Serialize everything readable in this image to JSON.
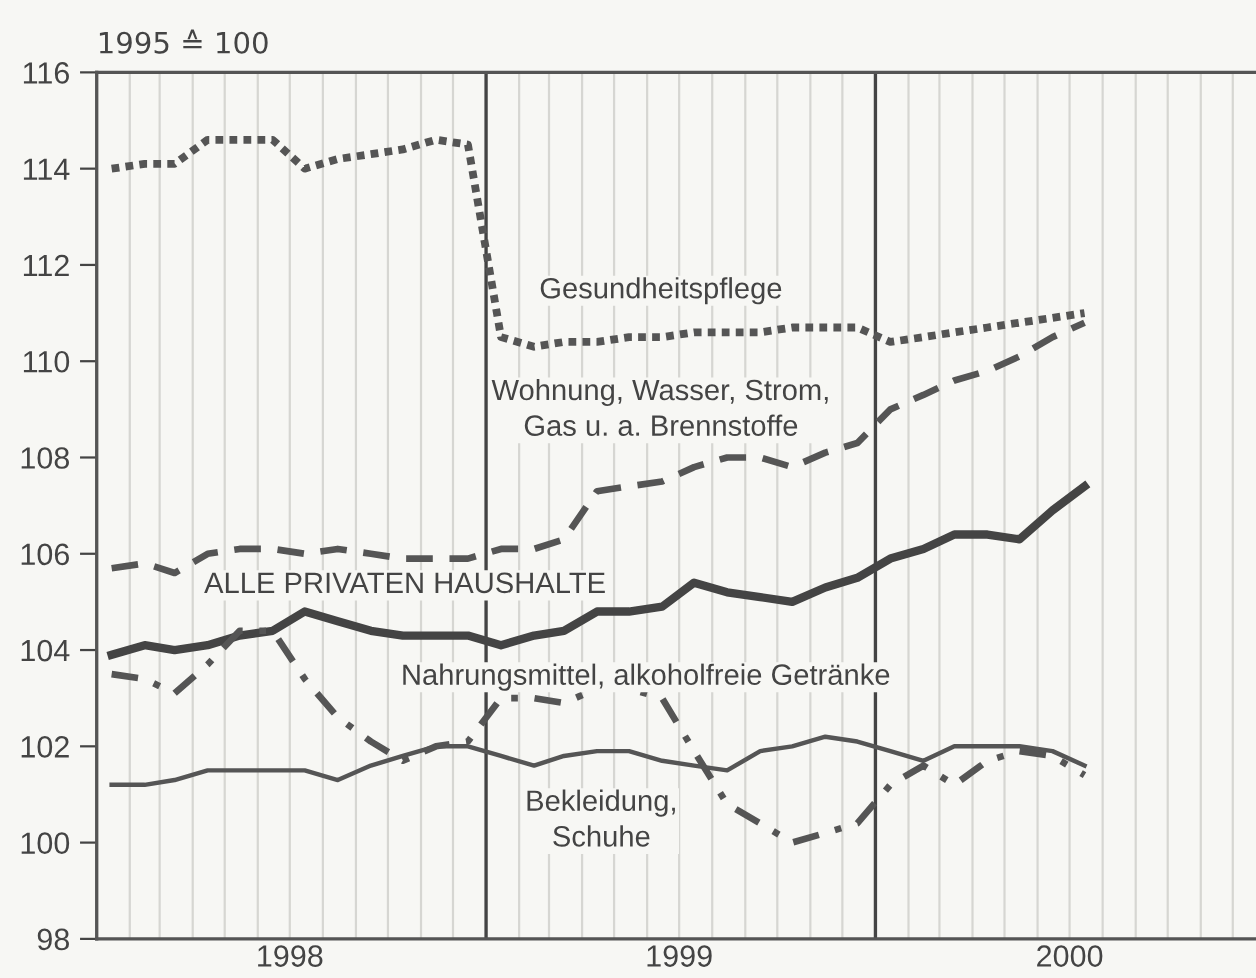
{
  "chart_data": {
    "type": "line",
    "ylabel": "1995 ≙ 100",
    "x": [
      "1998-01-15",
      "1998-02-15",
      "1998-03-15",
      "1998-04-15",
      "1998-05-15",
      "1998-06-15",
      "1998-07-15",
      "1998-08-15",
      "1998-09-15",
      "1998-10-15",
      "1998-11-15",
      "1998-12-15",
      "1999-01-15",
      "1999-02-15",
      "1999-03-15",
      "1999-04-15",
      "1999-05-15",
      "1999-06-15",
      "1999-07-15",
      "1999-08-15",
      "1999-09-15",
      "1999-10-15",
      "1999-11-15",
      "1999-12-15",
      "2000-01-15",
      "2000-02-15",
      "2000-03-15",
      "2000-04-15",
      "2000-05-15",
      "2000-06-15",
      "2000-07-15"
    ],
    "series": [
      {
        "name": "Gesundheitspflege",
        "color": "#555555",
        "line_style": "dotted",
        "values": [
          114.0,
          114.1,
          114.1,
          114.6,
          114.6,
          114.6,
          114.0,
          114.2,
          114.3,
          114.4,
          114.6,
          114.5,
          110.5,
          110.3,
          110.4,
          110.4,
          110.5,
          110.5,
          110.6,
          110.6,
          110.6,
          110.7,
          110.7,
          110.7,
          110.4,
          110.5,
          110.6,
          110.7,
          110.8,
          110.9,
          111.0
        ]
      },
      {
        "name": "Wohnung, Wasser, Strom,\nGas u. a. Brennstoffe",
        "color": "#555555",
        "line_style": "dashed",
        "values": [
          105.7,
          105.8,
          105.6,
          106.0,
          106.1,
          106.1,
          106.0,
          106.1,
          106.0,
          105.9,
          105.9,
          105.9,
          106.1,
          106.1,
          106.3,
          107.3,
          107.4,
          107.5,
          107.8,
          108.0,
          108.0,
          107.8,
          108.1,
          108.3,
          109.0,
          109.3,
          109.6,
          109.8,
          110.1,
          110.5,
          110.8
        ]
      },
      {
        "name": "ALLE PRIVATEN HAUSHALTE",
        "color": "#444444",
        "line_style": "solid",
        "values": [
          103.9,
          104.1,
          104.0,
          104.1,
          104.3,
          104.4,
          104.8,
          104.6,
          104.4,
          104.3,
          104.3,
          104.3,
          104.1,
          104.3,
          104.4,
          104.8,
          104.8,
          104.9,
          105.4,
          105.2,
          105.1,
          105.0,
          105.3,
          105.5,
          105.9,
          106.1,
          106.4,
          106.4,
          106.3,
          106.9,
          107.4
        ]
      },
      {
        "name": "Nahrungsmittel, alkoholfreie Getränke",
        "color": "#555555",
        "line_style": "dashdot",
        "values": [
          103.5,
          103.4,
          103.1,
          103.7,
          104.4,
          104.4,
          103.4,
          102.6,
          102.1,
          101.7,
          102.0,
          102.1,
          103.0,
          103.0,
          102.9,
          103.2,
          103.2,
          103.0,
          101.9,
          100.8,
          100.4,
          100.0,
          100.2,
          100.4,
          101.2,
          101.6,
          101.2,
          101.7,
          101.9,
          101.8,
          101.4
        ]
      },
      {
        "name": "Bekleidung,\nSchuhe",
        "color": "#555555",
        "line_style": "solid",
        "values": [
          101.2,
          101.2,
          101.3,
          101.5,
          101.5,
          101.5,
          101.5,
          101.3,
          101.6,
          101.8,
          102.0,
          102.0,
          101.8,
          101.6,
          101.8,
          101.9,
          101.9,
          101.7,
          101.6,
          101.5,
          101.9,
          102.0,
          102.2,
          102.1,
          101.9,
          101.7,
          102.0,
          102.0,
          102.0,
          101.9,
          101.6
        ]
      }
    ],
    "xlim": [
      "1998-01-01",
      "2000-12-31"
    ],
    "xticks": [
      {
        "value": "1998-07-01",
        "label": "1998"
      },
      {
        "value": "1999-07-01",
        "label": "1999"
      },
      {
        "value": "2000-07-01",
        "label": "2000"
      }
    ],
    "ylim": [
      98,
      116
    ],
    "yticks": [
      98,
      100,
      102,
      104,
      106,
      108,
      110,
      112,
      114,
      116
    ],
    "ref_lines": [
      {
        "axis": "x",
        "value": "1999-01-01",
        "color": "#444444"
      },
      {
        "axis": "x",
        "value": "2000-01-01",
        "color": "#444444"
      }
    ],
    "grid": "x",
    "legend": false
  }
}
